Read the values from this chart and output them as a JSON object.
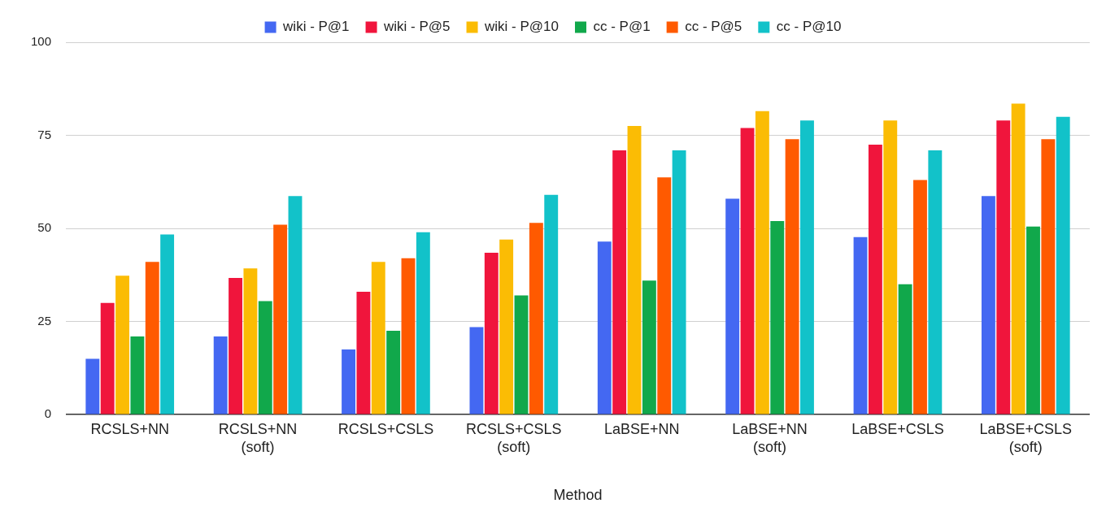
{
  "chart_data": {
    "type": "bar",
    "xlabel": "Method",
    "categories": [
      "RCSLS+NN",
      "RCSLS+NN (soft)",
      "RCSLS+CSLS",
      "RCSLS+CSLS (soft)",
      "LaBSE+NN",
      "LaBSE+NN (soft)",
      "LaBSE+CSLS",
      "LaBSE+CSLS (soft)"
    ],
    "series": [
      {
        "name": "wiki - P@1",
        "color": "#4468f2",
        "values": [
          15,
          21,
          17.5,
          23.5,
          46.5,
          58,
          47.7,
          58.7
        ]
      },
      {
        "name": "wiki - P@5",
        "color": "#f0153c",
        "values": [
          30,
          36.7,
          33,
          43.5,
          71,
          77,
          72.5,
          79
        ]
      },
      {
        "name": "wiki - P@10",
        "color": "#fbbc04",
        "values": [
          37.3,
          39.3,
          41,
          47,
          77.5,
          81.5,
          79,
          83.5
        ]
      },
      {
        "name": "cc - P@1",
        "color": "#11a84b",
        "values": [
          21,
          30.5,
          22.5,
          32,
          36,
          52,
          35,
          50.5
        ]
      },
      {
        "name": "cc - P@5",
        "color": "#ff5a00",
        "values": [
          41,
          51,
          42,
          51.5,
          63.7,
          74,
          63,
          74
        ]
      },
      {
        "name": "cc - P@10",
        "color": "#12c2c9",
        "values": [
          48.4,
          58.7,
          49,
          59,
          71,
          79,
          71,
          80
        ]
      }
    ],
    "ylim": [
      0,
      100
    ],
    "yticks": [
      0,
      25,
      50,
      75,
      100
    ],
    "grid": "y",
    "legend": "top"
  }
}
